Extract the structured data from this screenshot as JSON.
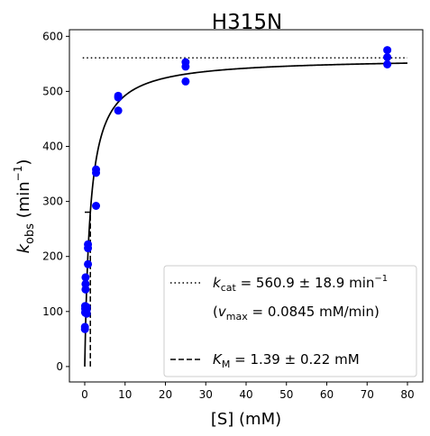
{
  "chart_data": {
    "type": "scatter",
    "title": "H315N",
    "xlabel": "[S] (mM)",
    "ylabel_main": "k",
    "ylabel_sub": "obs",
    "ylabel_unit_pre": " (min",
    "ylabel_unit_sup": "−1",
    "ylabel_unit_post": ")",
    "xlim": [
      -3.8,
      83.8
    ],
    "ylim": [
      -28,
      612
    ],
    "xticks": [
      0,
      10,
      20,
      30,
      40,
      50,
      60,
      70,
      80
    ],
    "yticks": [
      0,
      100,
      200,
      300,
      400,
      500,
      600
    ],
    "grid": false,
    "point_color": "#0000ff",
    "points": [
      {
        "x": 0.05,
        "y": 68
      },
      {
        "x": 0.05,
        "y": 72
      },
      {
        "x": 0.1,
        "y": 98
      },
      {
        "x": 0.1,
        "y": 110
      },
      {
        "x": 0.1,
        "y": 105
      },
      {
        "x": 0.2,
        "y": 140
      },
      {
        "x": 0.2,
        "y": 150
      },
      {
        "x": 0.2,
        "y": 162
      },
      {
        "x": 0.5,
        "y": 96
      },
      {
        "x": 0.5,
        "y": 103
      },
      {
        "x": 0.5,
        "y": 108
      },
      {
        "x": 0.8,
        "y": 186
      },
      {
        "x": 0.8,
        "y": 215
      },
      {
        "x": 0.8,
        "y": 222
      },
      {
        "x": 2.8,
        "y": 292
      },
      {
        "x": 2.8,
        "y": 352
      },
      {
        "x": 2.8,
        "y": 358
      },
      {
        "x": 8.3,
        "y": 465
      },
      {
        "x": 8.3,
        "y": 489
      },
      {
        "x": 8.3,
        "y": 492
      },
      {
        "x": 25,
        "y": 518
      },
      {
        "x": 25,
        "y": 545
      },
      {
        "x": 25,
        "y": 553
      },
      {
        "x": 75,
        "y": 549
      },
      {
        "x": 75,
        "y": 562
      },
      {
        "x": 75,
        "y": 575
      }
    ],
    "fit": {
      "kcat": 560.9,
      "km": 1.39,
      "x_start": 0,
      "x_end": 80
    },
    "kcat_line": {
      "y": 560.9,
      "x_start": -0.5,
      "x_end": 80
    },
    "km_line": {
      "x": 1.39,
      "y_top": 280.45
    },
    "legend": {
      "position": "lower right",
      "kcat_entry": {
        "sym": "k",
        "sub": "cat",
        "text": " = 560.9 ± 18.9 min",
        "sup": "−1"
      },
      "vmax_entry": {
        "pre": "(",
        "sym": "v",
        "sub": "max",
        "text": " = 0.0845 mM/min)"
      },
      "km_entry": {
        "sym": "K",
        "sub": "M",
        "text": " = 1.39 ± 0.22 mM"
      }
    }
  }
}
